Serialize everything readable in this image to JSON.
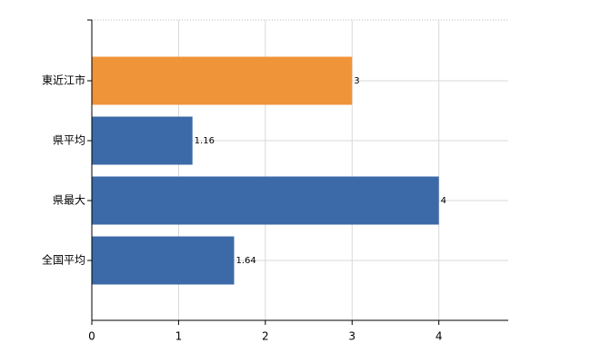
{
  "chart_data": {
    "type": "bar",
    "orientation": "horizontal",
    "categories": [
      "東近江市",
      "県平均",
      "県最大",
      "全国平均"
    ],
    "values": [
      3,
      1.16,
      4,
      1.64
    ],
    "colors": [
      "#f0943a",
      "#3c6aa8",
      "#3c6aa8",
      "#3c6aa8"
    ],
    "xlim": [
      0,
      4.8
    ],
    "xticks": [
      0,
      1,
      2,
      3,
      4
    ],
    "grid": true
  }
}
